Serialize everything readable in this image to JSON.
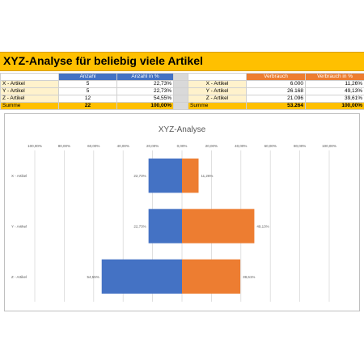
{
  "title": "XYZ-Analyse für beliebig viele Artikel",
  "table": {
    "headers": {
      "anzahl": "Anzahl",
      "anzahl_pct": "Anzahl in %",
      "verbrauch": "Verbrauch",
      "verbrauch_pct": "Verbrauch in %"
    },
    "rows": [
      {
        "label": "X - Artikel",
        "anzahl": "5",
        "anzahl_pct": "22,73%",
        "label2": "X - Artikel",
        "verbrauch": "6.000",
        "verbrauch_pct": "11,26%"
      },
      {
        "label": "Y - Artikel",
        "anzahl": "5",
        "anzahl_pct": "22,73%",
        "label2": "Y - Artikel",
        "verbrauch": "26.168",
        "verbrauch_pct": "49,13%"
      },
      {
        "label": "Z - Artikel",
        "anzahl": "12",
        "anzahl_pct": "54,55%",
        "label2": "Z - Artikel",
        "verbrauch": "21.096",
        "verbrauch_pct": "39,61%"
      }
    ],
    "sum": {
      "label": "Summe",
      "anzahl": "22",
      "anzahl_pct": "100,00%",
      "label2": "Summe",
      "verbrauch": "53.264",
      "verbrauch_pct": "100,00%"
    }
  },
  "chart_data": {
    "type": "bar",
    "orientation": "horizontal-butterfly",
    "title": "XYZ-Analyse",
    "categories": [
      "X - Artikel",
      "Y - Artikel",
      "Z - Artikel"
    ],
    "x_ticks": [
      "100,00%",
      "80,00%",
      "60,00%",
      "40,00%",
      "20,00%",
      "0,00%",
      "20,00%",
      "40,00%",
      "60,00%",
      "80,00%",
      "100,00%"
    ],
    "xlim": [
      -100,
      100
    ],
    "grid": true,
    "series": [
      {
        "values": [
          -22.73,
          -22.73,
          -54.55
        ],
        "labels": [
          "22,73%",
          "22,73%",
          "54,55%"
        ],
        "color": "#4472C4"
      },
      {
        "values": [
          11.26,
          49.13,
          39.61
        ],
        "labels": [
          "11,26%",
          "49,13%",
          "39,61%"
        ],
        "color": "#ED7D31"
      }
    ]
  }
}
